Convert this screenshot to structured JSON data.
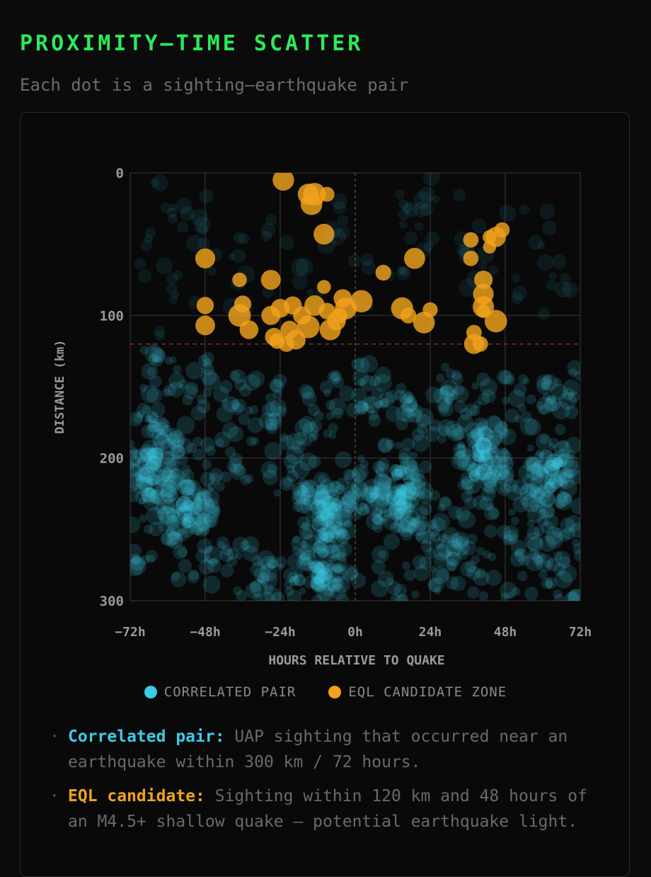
{
  "header": {
    "title": "PROXIMITY–TIME SCATTER",
    "subtitle": "Each dot is a sighting–earthquake pair"
  },
  "legend": {
    "correlated_label": "CORRELATED PAIR",
    "eql_label": "EQL CANDIDATE ZONE"
  },
  "notes": [
    {
      "key": "Correlated pair:",
      "text": " UAP sighting that occurred near an earthquake within 300 km / 72 hours."
    },
    {
      "key": "EQL candidate:",
      "text": " Sighting within 120 km and 48 hours of an M4.5+ shallow quake — potential earthquake light."
    }
  ],
  "colors": {
    "correlated": "#3ccce8",
    "eql": "#f2a21c",
    "title": "#2bea5a",
    "threshold": "#b04040"
  },
  "chart_data": {
    "type": "scatter",
    "xlabel": "HOURS RELATIVE TO QUAKE",
    "ylabel": "DISTANCE (km)",
    "xlim": [
      -72,
      72
    ],
    "ylim": [
      300,
      0
    ],
    "x_ticks": [
      -72,
      -48,
      -24,
      0,
      24,
      48,
      72
    ],
    "x_tick_labels": [
      "−72h",
      "−48h",
      "−24h",
      "0h",
      "24h",
      "48h",
      "72h"
    ],
    "y_ticks": [
      0,
      100,
      200,
      300
    ],
    "y_tick_labels": [
      "0",
      "100",
      "200",
      "300"
    ],
    "grid": true,
    "eql_threshold_km": 120,
    "series": [
      {
        "name": "CORRELATED PAIR",
        "color": "#3ccce8",
        "description_density": "dense cloud, heavier below 120 km",
        "points": [
          [
            -65,
            210
          ],
          [
            -64,
            200
          ],
          [
            -66,
            220
          ],
          [
            -53,
            232
          ],
          [
            -52,
            225
          ],
          [
            -54,
            240
          ],
          [
            -10,
            240
          ],
          [
            -9,
            230
          ],
          [
            -11,
            250
          ],
          [
            -12,
            270
          ],
          [
            -11,
            280
          ],
          [
            14,
            232
          ],
          [
            15,
            220
          ],
          [
            16,
            210
          ],
          [
            13,
            240
          ],
          [
            40,
            205
          ],
          [
            41,
            195
          ],
          [
            40,
            185
          ],
          [
            42,
            215
          ],
          [
            63,
            210
          ],
          [
            62,
            200
          ],
          [
            64,
            220
          ],
          [
            -68,
            120
          ],
          [
            -60,
            140
          ],
          [
            -45,
            150
          ],
          [
            -30,
            160
          ],
          [
            -15,
            170
          ],
          [
            0,
            150
          ],
          [
            10,
            160
          ],
          [
            25,
            170
          ],
          [
            35,
            150
          ],
          [
            55,
            160
          ],
          [
            68,
            150
          ],
          [
            -70,
            180
          ],
          [
            -58,
            190
          ],
          [
            -40,
            200
          ],
          [
            -20,
            210
          ],
          [
            -5,
            220
          ],
          [
            5,
            230
          ],
          [
            20,
            240
          ],
          [
            30,
            250
          ],
          [
            50,
            240
          ],
          [
            65,
            250
          ],
          [
            -66,
            260
          ],
          [
            -50,
            270
          ],
          [
            -35,
            280
          ],
          [
            -25,
            290
          ],
          [
            -5,
            295
          ],
          [
            15,
            285
          ],
          [
            30,
            275
          ],
          [
            45,
            285
          ],
          [
            60,
            280
          ],
          [
            70,
            295
          ],
          [
            -60,
            20
          ],
          [
            -55,
            35
          ],
          [
            -48,
            25
          ],
          [
            -40,
            60
          ],
          [
            -28,
            40
          ],
          [
            -12,
            30
          ],
          [
            -2,
            55
          ],
          [
            14,
            35
          ],
          [
            20,
            10
          ],
          [
            28,
            30
          ],
          [
            40,
            70
          ],
          [
            55,
            40
          ],
          [
            62,
            60
          ],
          [
            -70,
            50
          ],
          [
            -65,
            75
          ],
          [
            -52,
            80
          ],
          [
            -35,
            85
          ],
          [
            -18,
            70
          ],
          [
            8,
            80
          ],
          [
            22,
            60
          ],
          [
            35,
            50
          ],
          [
            50,
            80
          ],
          [
            68,
            85
          ]
        ]
      },
      {
        "name": "EQL CANDIDATE ZONE",
        "color": "#f2a21c",
        "points": [
          [
            -48,
            60
          ],
          [
            -48,
            93
          ],
          [
            -48,
            107
          ],
          [
            -37,
            75
          ],
          [
            -37,
            100
          ],
          [
            -36,
            92
          ],
          [
            -34,
            110
          ],
          [
            -27,
            75
          ],
          [
            -27,
            100
          ],
          [
            -24,
            95
          ],
          [
            -25,
            118
          ],
          [
            -26,
            115
          ],
          [
            -22,
            120
          ],
          [
            -21,
            110
          ],
          [
            -19,
            117
          ],
          [
            -17,
            100
          ],
          [
            -15,
            108
          ],
          [
            -13,
            93
          ],
          [
            -9,
            97
          ],
          [
            -8,
            110
          ],
          [
            -6,
            104
          ],
          [
            -20,
            93
          ],
          [
            -23,
            5
          ],
          [
            -15,
            15
          ],
          [
            -13,
            15
          ],
          [
            -14,
            22
          ],
          [
            -9,
            15
          ],
          [
            -10,
            43
          ],
          [
            -10,
            80
          ],
          [
            -4,
            88
          ],
          [
            -3,
            95
          ],
          [
            -5,
            100
          ],
          [
            2,
            90
          ],
          [
            9,
            70
          ],
          [
            15,
            95
          ],
          [
            17,
            100
          ],
          [
            22,
            105
          ],
          [
            24,
            96
          ],
          [
            19,
            60
          ],
          [
            37,
            47
          ],
          [
            37,
            60
          ],
          [
            38,
            112
          ],
          [
            38,
            120
          ],
          [
            40,
            120
          ],
          [
            41,
            75
          ],
          [
            41,
            85
          ],
          [
            41,
            94
          ],
          [
            41,
            97
          ],
          [
            43,
            45
          ],
          [
            43,
            52
          ],
          [
            45,
            45
          ],
          [
            47,
            40
          ],
          [
            45,
            104
          ]
        ]
      }
    ]
  }
}
